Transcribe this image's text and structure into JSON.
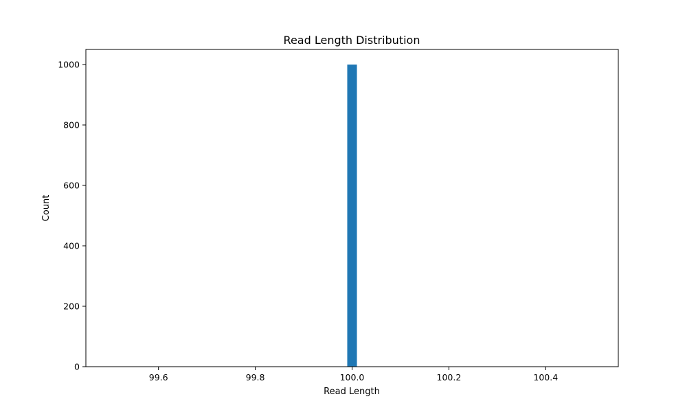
{
  "chart_data": {
    "type": "bar",
    "title": "Read Length Distribution",
    "xlabel": "Read Length",
    "ylabel": "Count",
    "xlim": [
      99.45,
      100.55
    ],
    "ylim": [
      0,
      1050
    ],
    "xticks": [
      99.6,
      99.8,
      100.0,
      100.2,
      100.4
    ],
    "xtick_labels": [
      "99.6",
      "99.8",
      "100.0",
      "100.2",
      "100.4"
    ],
    "yticks": [
      0,
      200,
      400,
      600,
      800,
      1000
    ],
    "ytick_labels": [
      "0",
      "200",
      "400",
      "600",
      "800",
      "1000"
    ],
    "bars": [
      {
        "x_start": 99.99,
        "x_end": 100.01,
        "value": 1000
      }
    ],
    "bar_color": "#1f77b4",
    "grid": false,
    "legend": "none"
  }
}
